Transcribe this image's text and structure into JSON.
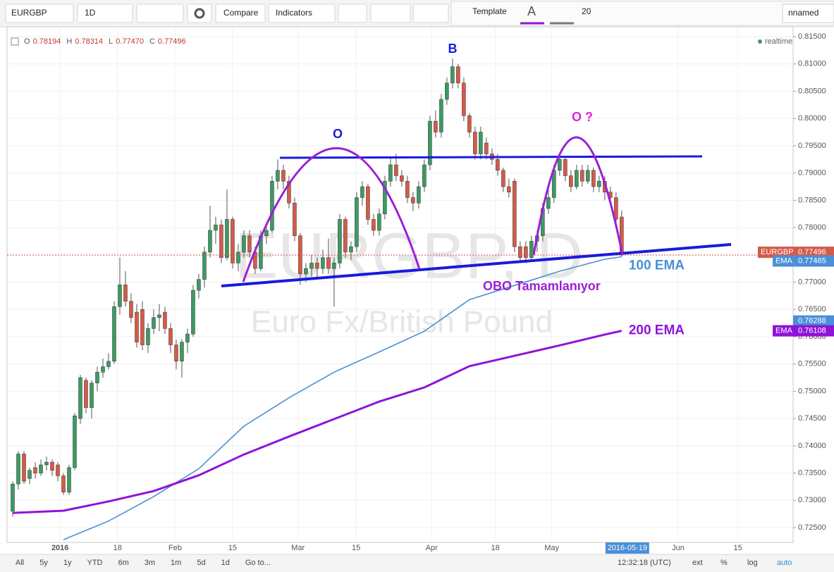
{
  "toolbar": {
    "symbol": "EURGBP",
    "interval": "1D",
    "compare": "Compare",
    "indicators": "Indicators",
    "template": "Template",
    "font_size": "20",
    "layout": "nnamed"
  },
  "bottom_bar": {
    "ranges": [
      "All",
      "5y",
      "1y",
      "YTD",
      "6m",
      "3m",
      "1m",
      "5d",
      "1d",
      "Go to..."
    ],
    "clock": "12:32:18 (UTC)",
    "options": [
      "ext",
      "%",
      "log",
      "auto"
    ]
  },
  "chart_data": {
    "type": "candlestick",
    "watermark": [
      "EURGBP, D",
      "Euro Fx/British Pound"
    ],
    "ohlc_legend": [
      {
        "key": "O",
        "value": "0.78194"
      },
      {
        "key": "H",
        "value": "0.78314"
      },
      {
        "key": "L",
        "value": "0.77470"
      },
      {
        "key": "C",
        "value": "0.77496"
      }
    ],
    "status": "realtime",
    "up_color": "#3d9a62",
    "down_color": "#d65a48",
    "ohlc": [
      [
        0.728,
        0.7335,
        0.727,
        0.733
      ],
      [
        0.733,
        0.739,
        0.732,
        0.7385
      ],
      [
        0.7385,
        0.739,
        0.733,
        0.7335
      ],
      [
        0.734,
        0.736,
        0.733,
        0.7355
      ],
      [
        0.736,
        0.737,
        0.734,
        0.735
      ],
      [
        0.735,
        0.7375,
        0.7345,
        0.7365
      ],
      [
        0.7365,
        0.738,
        0.7355,
        0.737
      ],
      [
        0.737,
        0.7375,
        0.7345,
        0.7355
      ],
      [
        0.7365,
        0.737,
        0.7335,
        0.7345
      ],
      [
        0.7345,
        0.735,
        0.731,
        0.7315
      ],
      [
        0.7315,
        0.7365,
        0.731,
        0.736
      ],
      [
        0.736,
        0.746,
        0.7355,
        0.7455
      ],
      [
        0.745,
        0.753,
        0.744,
        0.7525
      ],
      [
        0.752,
        0.7525,
        0.746,
        0.747
      ],
      [
        0.747,
        0.752,
        0.745,
        0.7515
      ],
      [
        0.7515,
        0.7545,
        0.75,
        0.7535
      ],
      [
        0.7535,
        0.756,
        0.7525,
        0.7545
      ],
      [
        0.7545,
        0.757,
        0.754,
        0.7555
      ],
      [
        0.7555,
        0.7665,
        0.755,
        0.7655
      ],
      [
        0.7655,
        0.7745,
        0.764,
        0.7695
      ],
      [
        0.7695,
        0.772,
        0.7655,
        0.7665
      ],
      [
        0.7665,
        0.768,
        0.7625,
        0.7635
      ],
      [
        0.7645,
        0.766,
        0.758,
        0.759
      ],
      [
        0.765,
        0.7665,
        0.7575,
        0.7585
      ],
      [
        0.7585,
        0.7625,
        0.757,
        0.7615
      ],
      [
        0.7615,
        0.765,
        0.7605,
        0.7635
      ],
      [
        0.7635,
        0.766,
        0.761,
        0.764
      ],
      [
        0.7645,
        0.7655,
        0.7605,
        0.7615
      ],
      [
        0.7615,
        0.7625,
        0.757,
        0.7585
      ],
      [
        0.7585,
        0.7595,
        0.754,
        0.7555
      ],
      [
        0.7555,
        0.7595,
        0.7525,
        0.759
      ],
      [
        0.759,
        0.7615,
        0.757,
        0.7605
      ],
      [
        0.7605,
        0.7695,
        0.76,
        0.7685
      ],
      [
        0.7685,
        0.7715,
        0.767,
        0.7705
      ],
      [
        0.7705,
        0.7765,
        0.769,
        0.7755
      ],
      [
        0.7755,
        0.784,
        0.7745,
        0.7795
      ],
      [
        0.7795,
        0.782,
        0.777,
        0.7805
      ],
      [
        0.7805,
        0.7815,
        0.7735,
        0.7745
      ],
      [
        0.7745,
        0.787,
        0.774,
        0.7815
      ],
      [
        0.7815,
        0.782,
        0.7725,
        0.7735
      ],
      [
        0.7735,
        0.777,
        0.772,
        0.7755
      ],
      [
        0.7755,
        0.7795,
        0.7745,
        0.7785
      ],
      [
        0.7785,
        0.7795,
        0.7745,
        0.7755
      ],
      [
        0.7755,
        0.7765,
        0.7715,
        0.7725
      ],
      [
        0.7725,
        0.7795,
        0.772,
        0.7785
      ],
      [
        0.7785,
        0.7805,
        0.777,
        0.7795
      ],
      [
        0.7795,
        0.7895,
        0.779,
        0.7885
      ],
      [
        0.7885,
        0.7925,
        0.787,
        0.7905
      ],
      [
        0.7905,
        0.7915,
        0.787,
        0.7885
      ],
      [
        0.7885,
        0.7895,
        0.7835,
        0.7845
      ],
      [
        0.7845,
        0.7855,
        0.7775,
        0.7785
      ],
      [
        0.7785,
        0.779,
        0.7695,
        0.7715
      ],
      [
        0.7715,
        0.7735,
        0.77,
        0.7725
      ],
      [
        0.7725,
        0.775,
        0.771,
        0.7735
      ],
      [
        0.7735,
        0.7745,
        0.7705,
        0.7725
      ],
      [
        0.7725,
        0.776,
        0.7715,
        0.7745
      ],
      [
        0.7745,
        0.778,
        0.7715,
        0.7725
      ],
      [
        0.7725,
        0.7745,
        0.7655,
        0.7735
      ],
      [
        0.7735,
        0.7825,
        0.7725,
        0.7815
      ],
      [
        0.7815,
        0.782,
        0.7745,
        0.7755
      ],
      [
        0.7755,
        0.7775,
        0.774,
        0.7765
      ],
      [
        0.7765,
        0.7865,
        0.7755,
        0.7855
      ],
      [
        0.7855,
        0.7885,
        0.784,
        0.7875
      ],
      [
        0.7875,
        0.788,
        0.7805,
        0.7815
      ],
      [
        0.7815,
        0.7825,
        0.7785,
        0.7795
      ],
      [
        0.7795,
        0.7835,
        0.7785,
        0.7825
      ],
      [
        0.7825,
        0.7895,
        0.7815,
        0.7885
      ],
      [
        0.7885,
        0.793,
        0.7875,
        0.7915
      ],
      [
        0.7915,
        0.7935,
        0.7885,
        0.7895
      ],
      [
        0.7895,
        0.7905,
        0.7875,
        0.7885
      ],
      [
        0.7885,
        0.7895,
        0.7845,
        0.7855
      ],
      [
        0.7855,
        0.7865,
        0.783,
        0.7845
      ],
      [
        0.7845,
        0.7885,
        0.7835,
        0.7875
      ],
      [
        0.7875,
        0.7925,
        0.7865,
        0.7915
      ],
      [
        0.7915,
        0.8005,
        0.7905,
        0.7995
      ],
      [
        0.7995,
        0.8015,
        0.7965,
        0.7975
      ],
      [
        0.7975,
        0.8045,
        0.7965,
        0.8035
      ],
      [
        0.8035,
        0.8075,
        0.8025,
        0.8065
      ],
      [
        0.8065,
        0.811,
        0.8055,
        0.8095
      ],
      [
        0.8095,
        0.81,
        0.8055,
        0.8065
      ],
      [
        0.8065,
        0.8075,
        0.7995,
        0.8005
      ],
      [
        0.8005,
        0.801,
        0.7965,
        0.7975
      ],
      [
        0.7975,
        0.7985,
        0.7925,
        0.7935
      ],
      [
        0.7935,
        0.7985,
        0.7925,
        0.7975
      ],
      [
        0.7955,
        0.7965,
        0.7925,
        0.7935
      ],
      [
        0.7935,
        0.7945,
        0.7915,
        0.7925
      ],
      [
        0.7925,
        0.7935,
        0.7895,
        0.7905
      ],
      [
        0.7905,
        0.791,
        0.7865,
        0.7875
      ],
      [
        0.7875,
        0.789,
        0.7855,
        0.7865
      ],
      [
        0.7885,
        0.789,
        0.7755,
        0.7765
      ],
      [
        0.7765,
        0.7775,
        0.774,
        0.7745
      ],
      [
        0.7765,
        0.7775,
        0.7735,
        0.7745
      ],
      [
        0.7745,
        0.7785,
        0.774,
        0.7775
      ],
      [
        0.7775,
        0.7795,
        0.7755,
        0.7785
      ],
      [
        0.7785,
        0.7845,
        0.7775,
        0.7835
      ],
      [
        0.7835,
        0.787,
        0.7825,
        0.7855
      ],
      [
        0.7855,
        0.7915,
        0.7845,
        0.7905
      ],
      [
        0.7905,
        0.7935,
        0.7895,
        0.7925
      ],
      [
        0.7925,
        0.793,
        0.7885,
        0.7895
      ],
      [
        0.7895,
        0.7905,
        0.7865,
        0.7875
      ],
      [
        0.7875,
        0.7915,
        0.787,
        0.7905
      ],
      [
        0.7905,
        0.7915,
        0.7875,
        0.7885
      ],
      [
        0.7885,
        0.7915,
        0.788,
        0.7905
      ],
      [
        0.7905,
        0.791,
        0.7865,
        0.7875
      ],
      [
        0.7875,
        0.7895,
        0.7865,
        0.7885
      ],
      [
        0.7885,
        0.7895,
        0.785,
        0.7865
      ],
      [
        0.7865,
        0.7875,
        0.7845,
        0.7855
      ],
      [
        0.7855,
        0.7865,
        0.7805,
        0.7815
      ],
      [
        0.78194,
        0.78314,
        0.7747,
        0.77496
      ]
    ],
    "series": [
      {
        "name": "100 EMA",
        "color": "#4a8fd8",
        "x": [
          9,
          17,
          25,
          33,
          41,
          49,
          57,
          65,
          73,
          81,
          89,
          97,
          105,
          108
        ],
        "values": [
          0.7228,
          0.7262,
          0.7307,
          0.7358,
          0.7436,
          0.7488,
          0.7535,
          0.7572,
          0.761,
          0.7668,
          0.7694,
          0.772,
          0.7742,
          0.77465
        ]
      },
      {
        "name": "200 EMA",
        "color": "#9013d9",
        "x": [
          0,
          9,
          17,
          25,
          33,
          41,
          49,
          57,
          65,
          73,
          81,
          89,
          97,
          105,
          108
        ],
        "values": [
          0.7277,
          0.7281,
          0.7298,
          0.7317,
          0.7346,
          0.7384,
          0.7417,
          0.7449,
          0.7481,
          0.7507,
          0.7546,
          0.7565,
          0.7584,
          0.7604,
          0.76108
        ]
      }
    ],
    "price_labels": [
      {
        "name": "EURGBP",
        "value": 0.77496,
        "color": "#d65a48"
      },
      {
        "name": "EMA",
        "value": 0.77465,
        "color": "#4a8fd8"
      },
      {
        "value": 0.76288,
        "color": "#4a8fd8"
      },
      {
        "name": "EMA",
        "value": 0.76108,
        "color": "#9013d9"
      }
    ],
    "annotations": [
      {
        "text": "B",
        "color": "#1a1adb"
      },
      {
        "text": "O",
        "color": "#1a1adb"
      },
      {
        "text": "O ?",
        "color": "#e020e0"
      },
      {
        "text": "OBO  Tamamlanıyor",
        "color": "#9a1fd6"
      }
    ],
    "xlim": [
      -1,
      138.4
    ],
    "ylim": [
      0.72229,
      0.81681
    ],
    "xticks": [
      {
        "value": 8.4,
        "label": "2016"
      },
      {
        "value": 18.6,
        "label": "18"
      },
      {
        "value": 28.8,
        "label": "Feb"
      },
      {
        "value": 39,
        "label": "15"
      },
      {
        "value": 50.6,
        "label": "Mar"
      },
      {
        "value": 60.9,
        "label": "15"
      },
      {
        "value": 74.3,
        "label": "Apr"
      },
      {
        "value": 85.6,
        "label": "18"
      },
      {
        "value": 95.6,
        "label": "May"
      },
      {
        "value": 118,
        "label": "Jun"
      },
      {
        "value": 128.6,
        "label": "15"
      }
    ],
    "crosshair_date": {
      "value": 109,
      "label": "2016-05-19"
    },
    "yticks": [
      {
        "value": 0.725,
        "label": "0.72500"
      },
      {
        "value": 0.73,
        "label": "0.73000"
      },
      {
        "value": 0.735,
        "label": "0.73500"
      },
      {
        "value": 0.74,
        "label": "0.74000"
      },
      {
        "value": 0.745,
        "label": "0.74500"
      },
      {
        "value": 0.75,
        "label": "0.75000"
      },
      {
        "value": 0.755,
        "label": "0.75500"
      },
      {
        "value": 0.76,
        "label": "0.76000"
      },
      {
        "value": 0.765,
        "label": "0.76500"
      },
      {
        "value": 0.77,
        "label": "0.77000"
      },
      {
        "value": 0.775,
        "label": "0.77500"
      },
      {
        "value": 0.78,
        "label": "0.78000"
      },
      {
        "value": 0.785,
        "label": "0.78500"
      },
      {
        "value": 0.79,
        "label": "0.79000"
      },
      {
        "value": 0.795,
        "label": "0.79500"
      },
      {
        "value": 0.8,
        "label": "0.80000"
      },
      {
        "value": 0.805,
        "label": "0.80500"
      },
      {
        "value": 0.81,
        "label": "0.81000"
      },
      {
        "value": 0.815,
        "label": "0.81500"
      }
    ],
    "grid": true
  }
}
